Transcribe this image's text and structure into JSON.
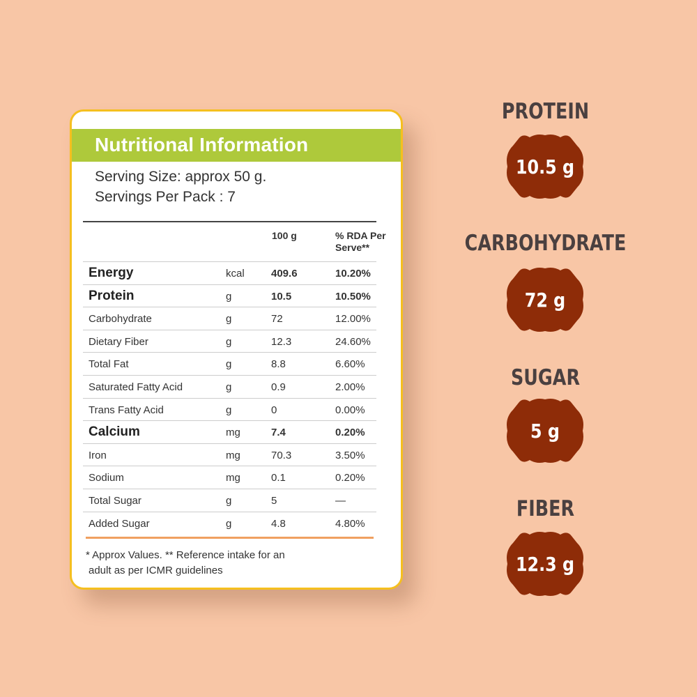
{
  "card": {
    "title": "Nutritional Information",
    "serving_size": "Serving Size: approx 50 g.",
    "servings_per_pack": "Servings Per Pack : 7",
    "columns": {
      "per100": "100 g",
      "rda": "% RDA Per Serve**"
    },
    "rows": [
      {
        "name": "Energy",
        "unit": "kcal",
        "value": "409.6",
        "rda": "10.20%",
        "bold": true
      },
      {
        "name": "Protein",
        "unit": "g",
        "value": "10.5",
        "rda": "10.50%",
        "bold": true
      },
      {
        "name": "Carbohydrate",
        "unit": "g",
        "value": "72",
        "rda": "12.00%",
        "bold": false
      },
      {
        "name": "Dietary Fiber",
        "unit": "g",
        "value": "12.3",
        "rda": "24.60%",
        "bold": false
      },
      {
        "name": "Total Fat",
        "unit": "g",
        "value": "8.8",
        "rda": "6.60%",
        "bold": false
      },
      {
        "name": "Saturated Fatty Acid",
        "unit": "g",
        "value": "0.9",
        "rda": "2.00%",
        "bold": false
      },
      {
        "name": "Trans Fatty Acid",
        "unit": "g",
        "value": "0",
        "rda": "0.00%",
        "bold": false
      },
      {
        "name": "Calcium",
        "unit": "mg",
        "value": "7.4",
        "rda": "0.20%",
        "bold": true
      },
      {
        "name": "Iron",
        "unit": "mg",
        "value": "70.3",
        "rda": "3.50%",
        "bold": false
      },
      {
        "name": "Sodium",
        "unit": "mg",
        "value": "0.1",
        "rda": "0.20%",
        "bold": false
      },
      {
        "name": "Total Sugar",
        "unit": "g",
        "value": "5",
        "rda": "—",
        "bold": false
      },
      {
        "name": "Added Sugar",
        "unit": "g",
        "value": "4.8",
        "rda": "4.80%",
        "bold": false
      }
    ],
    "footnote_line1": "* Approx Values. ** Reference intake for an",
    "footnote_line2": "adult as per ICMR guidelines"
  },
  "highlights": [
    {
      "label": "PROTEIN",
      "value": "10.5 g"
    },
    {
      "label": "CARBOHYDRATE",
      "value": "72 g"
    },
    {
      "label": "SUGAR",
      "value": "5 g"
    },
    {
      "label": "FIBER",
      "value": "12.3 g"
    }
  ],
  "colors": {
    "background": "#f8c6a6",
    "card_border": "#f5bf1f",
    "header_green": "#aec93b",
    "badge_brown": "#8e2c08",
    "footer_rule": "#f0a060"
  }
}
